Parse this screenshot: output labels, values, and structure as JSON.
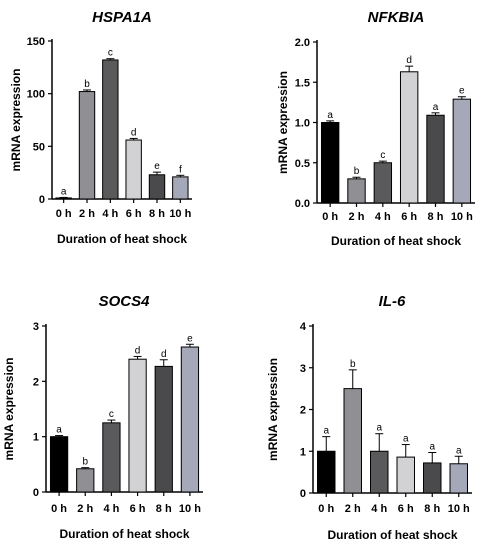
{
  "chart_data": [
    {
      "type": "bar",
      "title": "HSPA1A",
      "xlabel": "Duration of heat shock",
      "ylabel": "mRNA expression",
      "categories": [
        "0 h",
        "2 h",
        "4 h",
        "6 h",
        "8 h",
        "10 h"
      ],
      "values": [
        1,
        102,
        132,
        56,
        23,
        21
      ],
      "errors": [
        0.5,
        1.5,
        1.2,
        1.5,
        2.5,
        1.5
      ],
      "letters": [
        "a",
        "b",
        "c",
        "d",
        "e",
        "f"
      ],
      "bar_colors": [
        "#000000",
        "#8f8f94",
        "#5a5a5c",
        "#d2d2d4",
        "#4a4a4c",
        "#a5a8b8"
      ],
      "ylim": [
        0,
        150
      ],
      "yticks": [
        0,
        50,
        100,
        150
      ]
    },
    {
      "type": "bar",
      "title": "NFKBIA",
      "xlabel": "Duration of heat shock",
      "ylabel": "mRNA expression",
      "categories": [
        "0 h",
        "2 h",
        "4 h",
        "6 h",
        "8 h",
        "10 h"
      ],
      "values": [
        1.0,
        0.3,
        0.5,
        1.63,
        1.09,
        1.29
      ],
      "errors": [
        0.02,
        0.02,
        0.02,
        0.07,
        0.03,
        0.03
      ],
      "letters": [
        "a",
        "b",
        "c",
        "d",
        "a",
        "e"
      ],
      "bar_colors": [
        "#000000",
        "#8f8f94",
        "#5a5a5c",
        "#d2d2d4",
        "#4a4a4c",
        "#a5a8b8"
      ],
      "ylim": [
        0,
        2.0
      ],
      "yticks": [
        "0.0",
        "0.5",
        "1.0",
        "1.5",
        "2.0"
      ]
    },
    {
      "type": "bar",
      "title": "SOCS4",
      "xlabel": "Duration of heat shock",
      "ylabel": "mRNA expression",
      "categories": [
        "0 h",
        "2 h",
        "4 h",
        "6 h",
        "8 h",
        "10 h"
      ],
      "values": [
        1.0,
        0.42,
        1.25,
        2.4,
        2.27,
        2.62
      ],
      "errors": [
        0.02,
        0.02,
        0.05,
        0.05,
        0.12,
        0.05
      ],
      "letters": [
        "a",
        "b",
        "c",
        "d",
        "d",
        "e"
      ],
      "bar_colors": [
        "#000000",
        "#8f8f94",
        "#5a5a5c",
        "#d2d2d4",
        "#4a4a4c",
        "#a5a8b8"
      ],
      "ylim": [
        0,
        3
      ],
      "yticks": [
        0,
        1,
        2,
        3
      ]
    },
    {
      "type": "bar",
      "title": "IL-6",
      "xlabel": "Duration of heat shock",
      "ylabel": "mRNA expression",
      "categories": [
        "0 h",
        "2 h",
        "4 h",
        "6 h",
        "8 h",
        "10 h"
      ],
      "values": [
        1.0,
        2.5,
        1.0,
        0.86,
        0.72,
        0.7
      ],
      "errors": [
        0.35,
        0.45,
        0.42,
        0.3,
        0.25,
        0.18
      ],
      "letters": [
        "a",
        "b",
        "a",
        "a",
        "a",
        "a"
      ],
      "bar_colors": [
        "#000000",
        "#8f8f94",
        "#5a5a5c",
        "#d2d2d4",
        "#4a4a4c",
        "#a5a8b8"
      ],
      "ylim": [
        0,
        4
      ],
      "yticks": [
        0,
        1,
        2,
        3,
        4
      ]
    }
  ]
}
